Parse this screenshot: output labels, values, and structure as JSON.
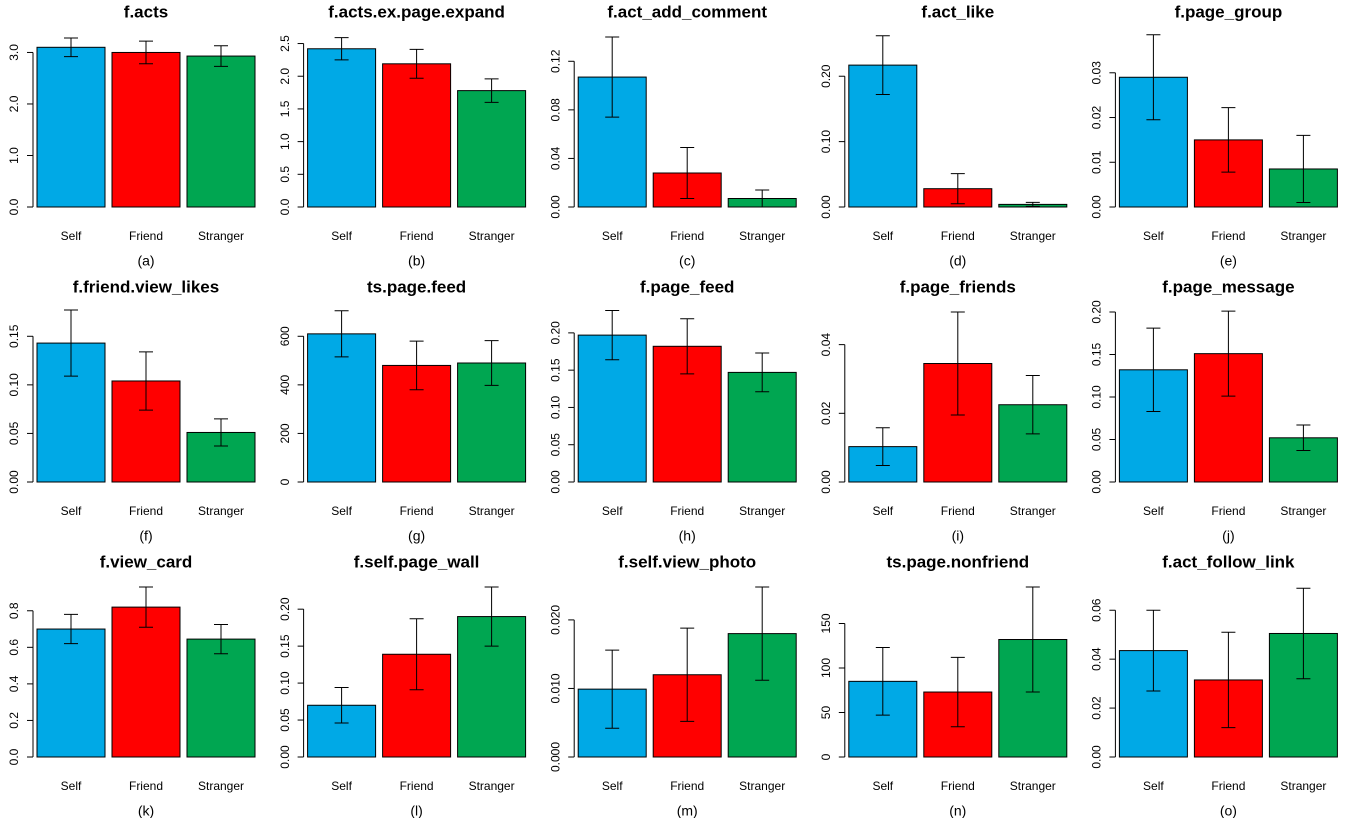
{
  "chart_data": [
    {
      "type": "bar",
      "title": "f.acts",
      "caption": "(a)",
      "categories": [
        "Self",
        "Friend",
        "Stranger"
      ],
      "values": [
        3.1,
        3.0,
        2.93
      ],
      "errors": [
        0.18,
        0.22,
        0.2
      ],
      "colors": [
        "#00a9e6",
        "#ff0000",
        "#00a651"
      ],
      "ylim": [
        0,
        3.3
      ],
      "yticks": [
        {
          "value": 0,
          "label": "0.0"
        },
        {
          "value": 1,
          "label": "1.0"
        },
        {
          "value": 2,
          "label": "2.0"
        },
        {
          "value": 3,
          "label": "3.0"
        }
      ]
    },
    {
      "type": "bar",
      "title": "f.acts.ex.page.expand",
      "caption": "(b)",
      "categories": [
        "Self",
        "Friend",
        "Stranger"
      ],
      "values": [
        2.42,
        2.19,
        1.78
      ],
      "errors": [
        0.17,
        0.22,
        0.18
      ],
      "colors": [
        "#00a9e6",
        "#ff0000",
        "#00a651"
      ],
      "ylim": [
        0,
        2.6
      ],
      "yticks": [
        {
          "value": 0,
          "label": "0.0"
        },
        0.5,
        {
          "value": 1,
          "label": "1.0"
        },
        1.5,
        {
          "value": 2,
          "label": "2.0"
        },
        2.5
      ]
    },
    {
      "type": "bar",
      "title": "f.act_add_comment",
      "caption": "(c)",
      "categories": [
        "Self",
        "Friend",
        "Stranger"
      ],
      "values": [
        0.107,
        0.028,
        0.007
      ],
      "errors": [
        0.033,
        0.021,
        0.007
      ],
      "colors": [
        "#00a9e6",
        "#ff0000",
        "#00a651"
      ],
      "ylim": [
        0,
        0.14
      ],
      "yticks": [
        {
          "value": 0,
          "label": "0.00"
        },
        0.04,
        0.08,
        0.12
      ]
    },
    {
      "type": "bar",
      "title": "f.act_like",
      "caption": "(d)",
      "categories": [
        "Self",
        "Friend",
        "Stranger"
      ],
      "values": [
        0.217,
        0.028,
        0.004
      ],
      "errors": [
        0.045,
        0.023,
        0.003
      ],
      "colors": [
        "#00a9e6",
        "#ff0000",
        "#00a651"
      ],
      "ylim": [
        0,
        0.26
      ],
      "yticks": [
        {
          "value": 0,
          "label": "0.00"
        },
        {
          "value": 0.1,
          "label": "0.10"
        },
        {
          "value": 0.2,
          "label": "0.20"
        }
      ]
    },
    {
      "type": "bar",
      "title": "f.page_group",
      "caption": "(e)",
      "categories": [
        "Self",
        "Friend",
        "Stranger"
      ],
      "values": [
        0.029,
        0.015,
        0.0085
      ],
      "errors": [
        0.0095,
        0.0072,
        0.0075
      ],
      "colors": [
        "#00a9e6",
        "#ff0000",
        "#00a651"
      ],
      "ylim": [
        0,
        0.038
      ],
      "yticks": [
        {
          "value": 0,
          "label": "0.00"
        },
        0.01,
        0.02,
        0.03
      ]
    },
    {
      "type": "bar",
      "title": "f.friend.view_likes",
      "caption": "(f)",
      "categories": [
        "Self",
        "Friend",
        "Stranger"
      ],
      "values": [
        0.143,
        0.104,
        0.051
      ],
      "errors": [
        0.034,
        0.03,
        0.014
      ],
      "colors": [
        "#00a9e6",
        "#ff0000",
        "#00a651"
      ],
      "ylim": [
        0,
        0.175
      ],
      "yticks": [
        {
          "value": 0,
          "label": "0.00"
        },
        0.05,
        {
          "value": 0.1,
          "label": "0.10"
        },
        0.15
      ]
    },
    {
      "type": "bar",
      "title": "ts.page.feed",
      "caption": "(g)",
      "categories": [
        "Self",
        "Friend",
        "Stranger"
      ],
      "values": [
        610,
        480,
        490
      ],
      "errors": [
        95,
        100,
        92
      ],
      "colors": [
        "#00a9e6",
        "#ff0000",
        "#00a651"
      ],
      "ylim": [
        0,
        700
      ],
      "yticks": [
        0,
        200,
        400,
        600
      ]
    },
    {
      "type": "bar",
      "title": "f.page_feed",
      "caption": "(h)",
      "categories": [
        "Self",
        "Friend",
        "Stranger"
      ],
      "values": [
        0.197,
        0.182,
        0.147
      ],
      "errors": [
        0.033,
        0.037,
        0.026
      ],
      "colors": [
        "#00a9e6",
        "#ff0000",
        "#00a651"
      ],
      "ylim": [
        0,
        0.228
      ],
      "yticks": [
        {
          "value": 0,
          "label": "0.00"
        },
        0.05,
        {
          "value": 0.1,
          "label": "0.10"
        },
        0.15,
        {
          "value": 0.2,
          "label": "0.20"
        }
      ]
    },
    {
      "type": "bar",
      "title": "f.page_friends",
      "caption": "(i)",
      "categories": [
        "Self",
        "Friend",
        "Stranger"
      ],
      "values": [
        0.0103,
        0.0345,
        0.0225
      ],
      "errors": [
        0.0055,
        0.015,
        0.0085
      ],
      "colors": [
        "#00a9e6",
        "#ff0000",
        "#00a651"
      ],
      "ylim": [
        0,
        0.0495
      ],
      "yticks": [
        {
          "value": 0,
          "label": "0.00"
        },
        0.02,
        0.04
      ]
    },
    {
      "type": "bar",
      "title": "f.page_message",
      "caption": "(j)",
      "categories": [
        "Self",
        "Friend",
        "Stranger"
      ],
      "values": [
        0.132,
        0.151,
        0.052
      ],
      "errors": [
        0.049,
        0.05,
        0.015
      ],
      "colors": [
        "#00a9e6",
        "#ff0000",
        "#00a651"
      ],
      "ylim": [
        0,
        0.2
      ],
      "yticks": [
        {
          "value": 0,
          "label": "0.00"
        },
        0.05,
        {
          "value": 0.1,
          "label": "0.10"
        },
        0.15,
        {
          "value": 0.2,
          "label": "0.20"
        }
      ]
    },
    {
      "type": "bar",
      "title": "f.view_card",
      "caption": "(k)",
      "categories": [
        "Self",
        "Friend",
        "Stranger"
      ],
      "values": [
        0.7,
        0.82,
        0.645
      ],
      "errors": [
        0.08,
        0.11,
        0.08
      ],
      "colors": [
        "#00a9e6",
        "#ff0000",
        "#00a651"
      ],
      "ylim": [
        0,
        0.93
      ],
      "yticks": [
        {
          "value": 0,
          "label": "0.0"
        },
        0.2,
        0.4,
        0.6,
        0.8
      ]
    },
    {
      "type": "bar",
      "title": "f.self.page_wall",
      "caption": "(l)",
      "categories": [
        "Self",
        "Friend",
        "Stranger"
      ],
      "values": [
        0.07,
        0.139,
        0.19
      ],
      "errors": [
        0.024,
        0.048,
        0.04
      ],
      "colors": [
        "#00a9e6",
        "#ff0000",
        "#00a651"
      ],
      "ylim": [
        0,
        0.23
      ],
      "yticks": [
        {
          "value": 0,
          "label": "0.00"
        },
        0.05,
        {
          "value": 0.1,
          "label": "0.10"
        },
        0.15,
        {
          "value": 0.2,
          "label": "0.20"
        }
      ]
    },
    {
      "type": "bar",
      "title": "f.self.view_photo",
      "caption": "(m)",
      "categories": [
        "Self",
        "Friend",
        "Stranger"
      ],
      "values": [
        0.0099,
        0.012,
        0.018
      ],
      "errors": [
        0.0057,
        0.0068,
        0.0068
      ],
      "colors": [
        "#00a9e6",
        "#ff0000",
        "#00a651"
      ],
      "ylim": [
        0,
        0.0248
      ],
      "yticks": [
        {
          "value": 0,
          "label": "0.000"
        },
        {
          "value": 0.01,
          "label": "0.010"
        },
        {
          "value": 0.02,
          "label": "0.020"
        }
      ]
    },
    {
      "type": "bar",
      "title": "ts.page.nonfriend",
      "caption": "(n)",
      "categories": [
        "Self",
        "Friend",
        "Stranger"
      ],
      "values": [
        85,
        73,
        132
      ],
      "errors": [
        38,
        39,
        59
      ],
      "colors": [
        "#00a9e6",
        "#ff0000",
        "#00a651"
      ],
      "ylim": [
        0,
        191
      ],
      "yticks": [
        0,
        50,
        100,
        150
      ]
    },
    {
      "type": "bar",
      "title": "f.act_follow_link",
      "caption": "(o)",
      "categories": [
        "Self",
        "Friend",
        "Stranger"
      ],
      "values": [
        0.0435,
        0.0315,
        0.0505
      ],
      "errors": [
        0.0165,
        0.0195,
        0.0185
      ],
      "colors": [
        "#00a9e6",
        "#ff0000",
        "#00a651"
      ],
      "ylim": [
        0,
        0.0695
      ],
      "yticks": [
        {
          "value": 0,
          "label": "0.00"
        },
        0.02,
        0.04,
        0.06
      ]
    }
  ]
}
